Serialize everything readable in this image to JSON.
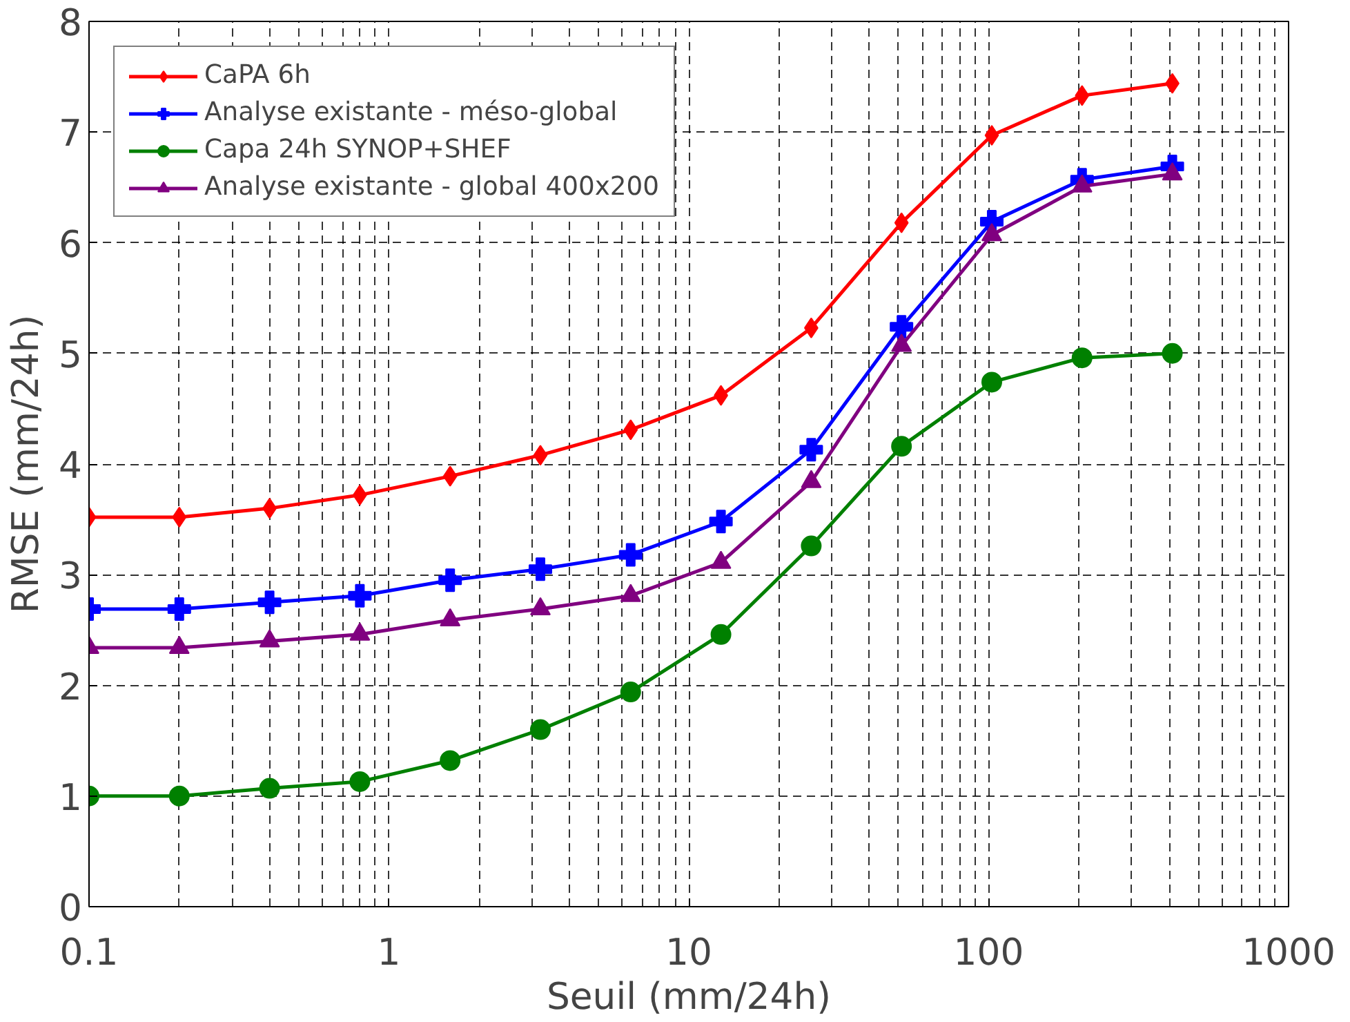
{
  "chart_data": {
    "type": "line",
    "xlabel": "Seuil (mm/24h)",
    "ylabel": "RMSE (mm/24h)",
    "x": [
      0.1,
      0.2,
      0.4,
      0.8,
      1.6,
      3.2,
      6.4,
      12.8,
      25.6,
      51.2,
      102.4,
      204.8,
      409.6
    ],
    "series": [
      {
        "name": "CaPA 6h",
        "color": "#ff0000",
        "marker": "diamond",
        "values": [
          3.52,
          3.52,
          3.6,
          3.72,
          3.89,
          4.08,
          4.31,
          4.62,
          5.23,
          6.18,
          6.97,
          7.33,
          7.44
        ]
      },
      {
        "name": "Analyse existante - méso-global",
        "color": "#0000ff",
        "marker": "cross",
        "values": [
          2.69,
          2.69,
          2.75,
          2.81,
          2.95,
          3.05,
          3.18,
          3.48,
          4.13,
          5.24,
          6.19,
          6.57,
          6.69
        ]
      },
      {
        "name": "Capa 24h SYNOP+SHEF",
        "color": "#008000",
        "marker": "circle",
        "values": [
          1.0,
          1.0,
          1.07,
          1.13,
          1.32,
          1.6,
          1.94,
          2.46,
          3.26,
          4.16,
          4.74,
          4.96,
          5.0
        ]
      },
      {
        "name": "Analyse existante - global 400x200",
        "color": "#800080",
        "marker": "triangle",
        "values": [
          2.34,
          2.34,
          2.4,
          2.46,
          2.59,
          2.69,
          2.81,
          3.11,
          3.84,
          5.07,
          6.07,
          6.51,
          6.62
        ]
      }
    ],
    "log": "x",
    "xlim": [
      0.1,
      1000
    ],
    "xticks": [
      0.1,
      1,
      10,
      100,
      1000
    ],
    "ylim": [
      0,
      8
    ],
    "yticks": [
      0,
      1,
      2,
      3,
      4,
      5,
      6,
      7,
      8
    ],
    "grid": true,
    "legend": "top left",
    "line_style": "solid"
  }
}
